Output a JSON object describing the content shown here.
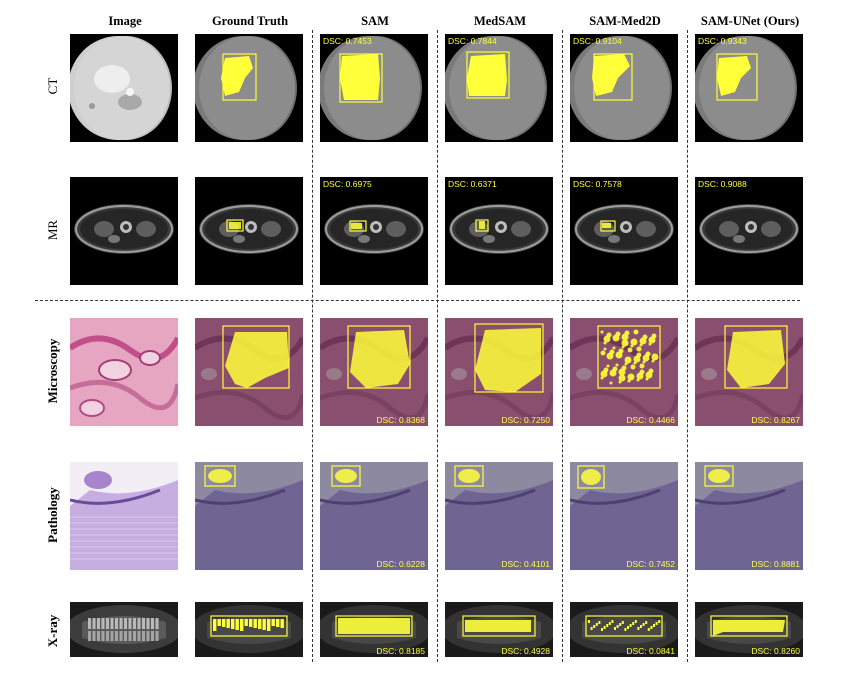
{
  "columns": [
    "Image",
    "Ground Truth",
    "SAM",
    "MedSAM",
    "SAM-Med2D",
    "SAM-UNet (Ours)"
  ],
  "rows": [
    {
      "label": "CT",
      "bold": false,
      "dsc_pos": "tl",
      "scores": [
        "DSC: 0.7453",
        "DSC: 0.7844",
        "DSC: 0.9104",
        "DSC: 0.9343"
      ]
    },
    {
      "label": "MR",
      "bold": false,
      "dsc_pos": "tl",
      "scores": [
        "DSC: 0.6975",
        "DSC: 0.6371",
        "DSC: 0.7578",
        "DSC: 0.9088"
      ]
    },
    {
      "label": "Microscopy",
      "bold": true,
      "dsc_pos": "br",
      "scores": [
        "DSC: 0.8368",
        "DSC: 0.7250",
        "DSC: 0.4466",
        "DSC: 0.8267"
      ]
    },
    {
      "label": "Pathology",
      "bold": true,
      "dsc_pos": "br",
      "scores": [
        "DSC: 0.6228",
        "DSC: 0.4101",
        "DSC: 0.7452",
        "DSC: 0.8881"
      ]
    },
    {
      "label": "X-ray",
      "bold": true,
      "dsc_pos": "br",
      "scores": [
        "DSC: 0.8185",
        "DSC: 0.4928",
        "DSC: 0.0841",
        "DSC: 0.8260"
      ]
    }
  ],
  "colors": {
    "mask": "#ffff3a",
    "dsc_text": "#ffff3a",
    "tile_background": "#000000",
    "ct_tissue": "#8c8c8c",
    "microscopy_tissue": "#8a4f6e",
    "pathology_tissue": "#6f6592"
  }
}
